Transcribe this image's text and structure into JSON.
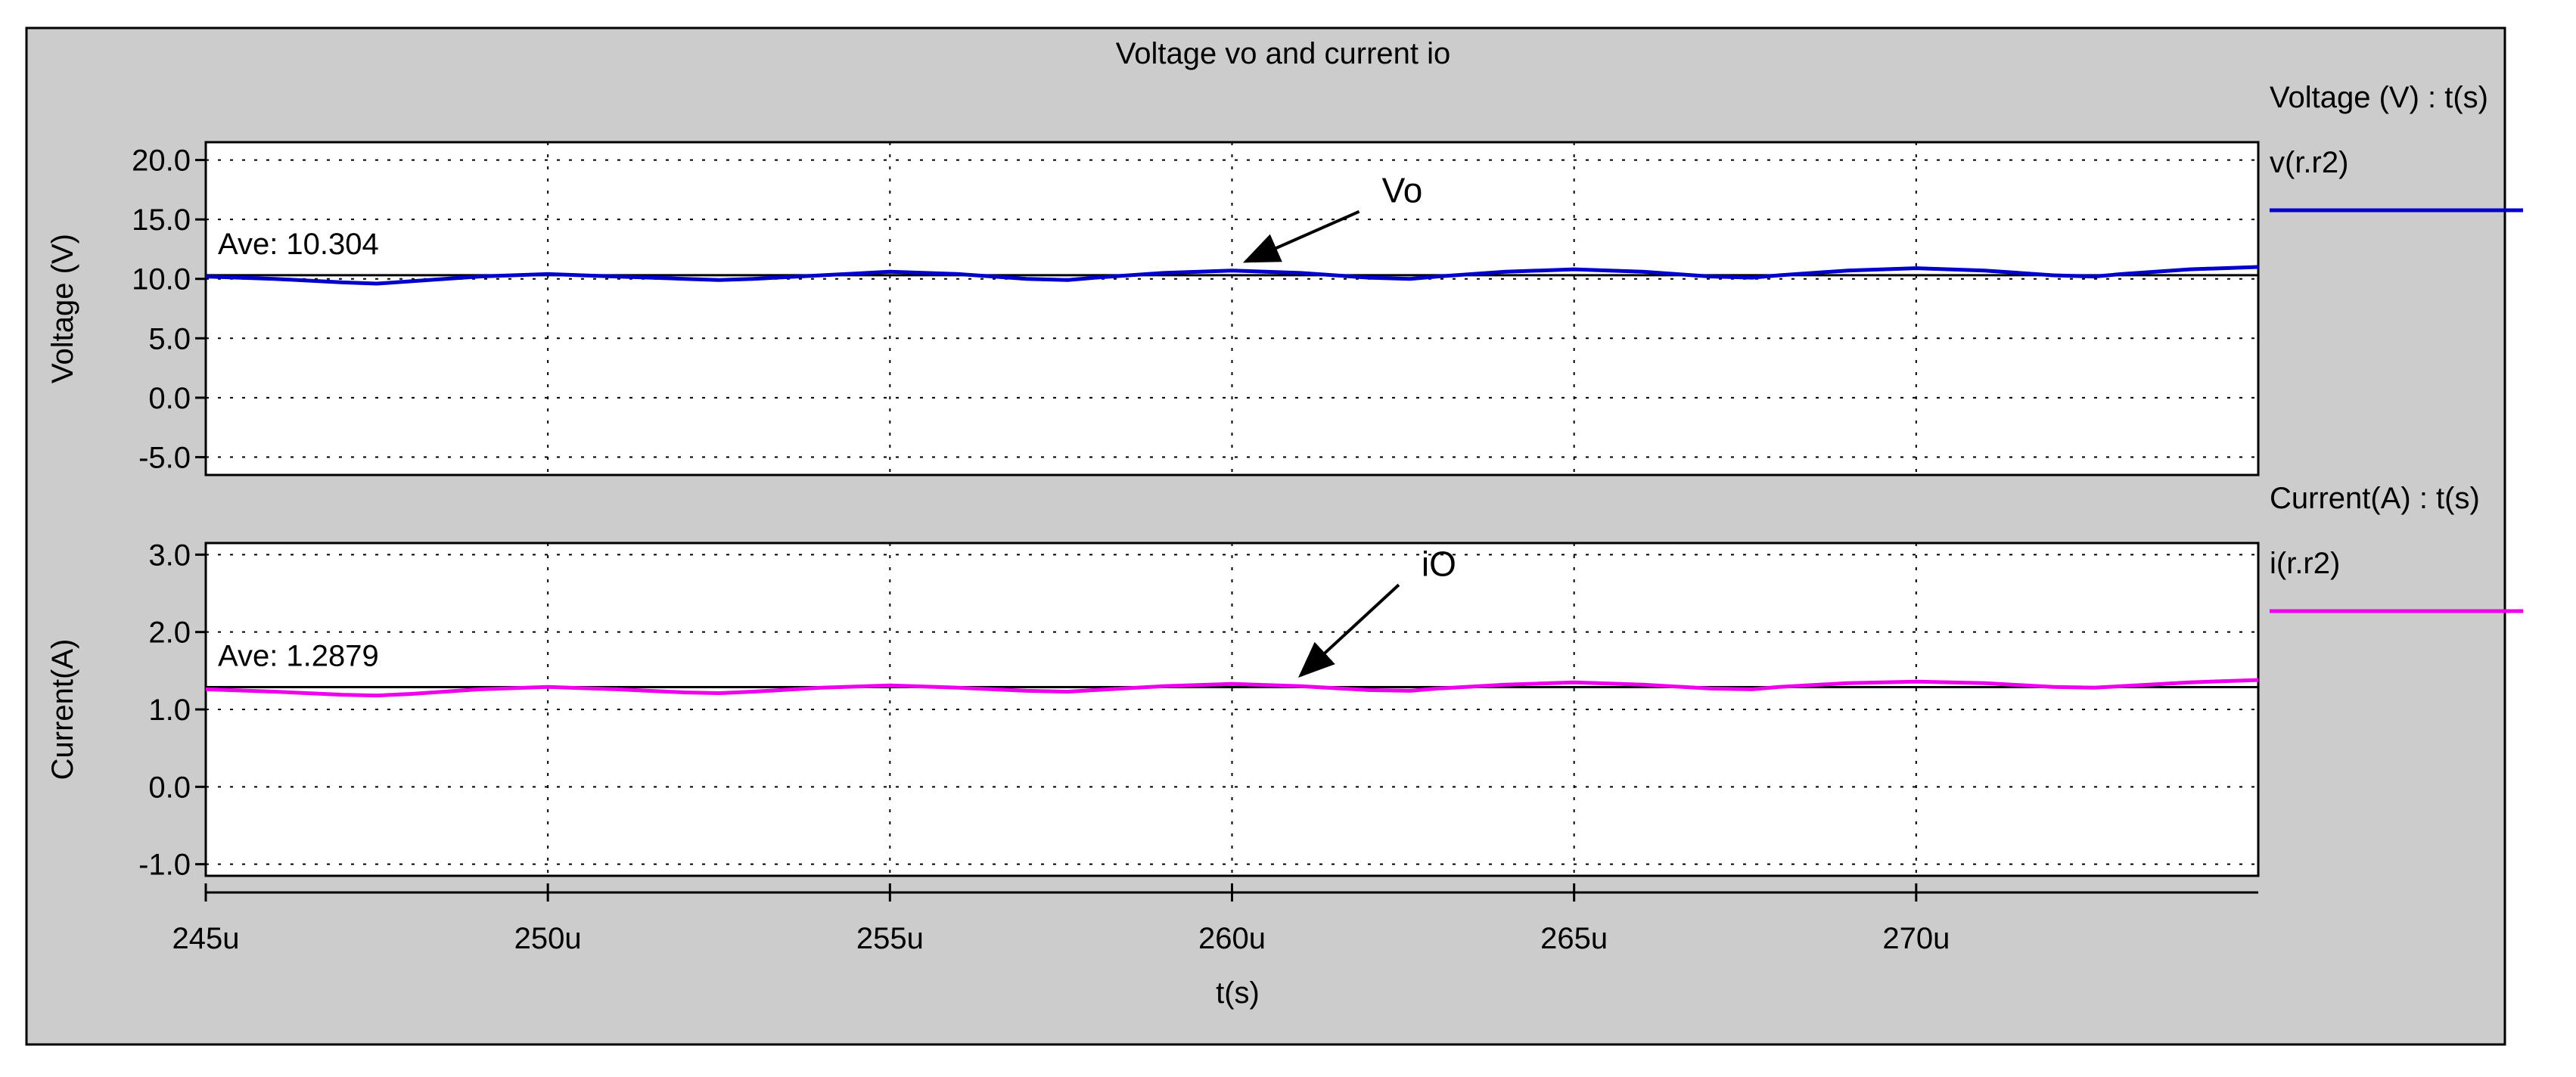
{
  "title": "Voltage vo and current io",
  "colors": {
    "panel_bg": "#cccccc",
    "plot_bg": "#ffffff",
    "axis": "#000000",
    "grid": "#000000",
    "voltage_series": "#0000cc",
    "current_series": "#ee00ee",
    "average_line": "#000000"
  },
  "x_axis": {
    "label": "t(s)",
    "ticks": [
      "245u",
      "250u",
      "255u",
      "260u",
      "265u",
      "270u"
    ]
  },
  "chart_data": [
    {
      "type": "line",
      "ylabel": "Voltage (V)",
      "xlabel": "t(s)",
      "legend_title": "Voltage (V) : t(s)",
      "legend_placement": "right",
      "grid": true,
      "xlim": [
        245,
        275
      ],
      "x_unit": "u",
      "ylim": [
        -6.5,
        21.5
      ],
      "y_ticks": [
        "20.0",
        "15.0",
        "10.0",
        "5.0",
        "0.0",
        "-5.0"
      ],
      "y_tick_values": [
        20,
        15,
        10,
        5,
        0,
        -5
      ],
      "series": [
        {
          "name": "v(r.r2)",
          "x": [
            245,
            246,
            247,
            247.5,
            248,
            249,
            250,
            251,
            252,
            252.5,
            253,
            254,
            255,
            256,
            257,
            257.6,
            258,
            259,
            260,
            261,
            262,
            262.6,
            263,
            264,
            265,
            266,
            267,
            267.6,
            268,
            269,
            270,
            271,
            272,
            272.6,
            273,
            274,
            275
          ],
          "y": [
            10.2,
            10.0,
            9.7,
            9.6,
            9.8,
            10.2,
            10.4,
            10.2,
            10.0,
            9.9,
            10.0,
            10.3,
            10.6,
            10.4,
            10.0,
            9.9,
            10.1,
            10.5,
            10.7,
            10.5,
            10.1,
            10.0,
            10.2,
            10.6,
            10.8,
            10.6,
            10.2,
            10.1,
            10.3,
            10.7,
            10.9,
            10.7,
            10.3,
            10.2,
            10.4,
            10.8,
            11.0
          ]
        }
      ],
      "average": {
        "label": "Ave: 10.304",
        "value": 10.304
      },
      "annotation": {
        "text": "Vo",
        "target_x": 260.2,
        "target_y": 10.7
      }
    },
    {
      "type": "line",
      "ylabel": "Current(A)",
      "xlabel": "t(s)",
      "legend_title": "Current(A) : t(s)",
      "legend_placement": "right",
      "grid": true,
      "xlim": [
        245,
        275
      ],
      "x_unit": "u",
      "ylim": [
        -1.15,
        3.15
      ],
      "y_ticks": [
        "3.0",
        "2.0",
        "1.0",
        "0.0",
        "-1.0"
      ],
      "y_tick_values": [
        3,
        2,
        1,
        0,
        -1
      ],
      "series": [
        {
          "name": "i(r.r2)",
          "x": [
            245,
            246,
            247,
            247.5,
            248,
            249,
            250,
            251,
            252,
            252.5,
            253,
            254,
            255,
            256,
            257,
            257.6,
            258,
            259,
            260,
            261,
            262,
            262.6,
            263,
            264,
            265,
            266,
            267,
            267.6,
            268,
            269,
            270,
            271,
            272,
            272.6,
            273,
            274,
            275
          ],
          "y": [
            1.26,
            1.23,
            1.19,
            1.18,
            1.2,
            1.26,
            1.29,
            1.26,
            1.22,
            1.21,
            1.23,
            1.28,
            1.31,
            1.28,
            1.24,
            1.23,
            1.25,
            1.3,
            1.33,
            1.3,
            1.25,
            1.24,
            1.27,
            1.32,
            1.35,
            1.32,
            1.27,
            1.26,
            1.29,
            1.34,
            1.36,
            1.34,
            1.29,
            1.28,
            1.3,
            1.35,
            1.38
          ]
        }
      ],
      "average": {
        "label": "Ave: 1.2879",
        "value": 1.2879
      },
      "annotation": {
        "text": "iO",
        "target_x": 261.0,
        "target_y": 1.32
      }
    }
  ]
}
